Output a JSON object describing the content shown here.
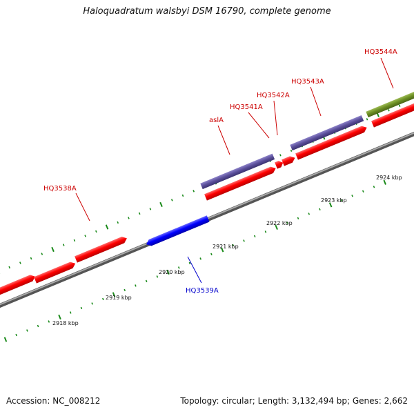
{
  "header": {
    "title": "Haloquadratum walsbyi DSM 16790, complete genome"
  },
  "footer": {
    "accession": "Accession: NC_008212",
    "summary": "Topology: circular; Length: 3,132,494 bp; Genes: 2,662"
  },
  "colors": {
    "forward_gene": "#ff0000",
    "reverse_gene": "#0000ff",
    "cds_forward": "#5a4e9a",
    "cds_other": "#6b8e23",
    "backbone": "#888888",
    "tick": "#1a8a1a",
    "label_forward": "#cc0000",
    "label_reverse": "#0000cc"
  },
  "scale_labels": [
    "2918 kbp",
    "2919 kbp",
    "2920 kbp",
    "2921 kbp",
    "2922 kbp",
    "2923 kbp",
    "2924 kbp"
  ],
  "gene_labels": {
    "hq3538a": "HQ3538A",
    "hq3539a": "HQ3539A",
    "asla": "aslA",
    "hq3541a": "HQ3541A",
    "hq3542a": "HQ3542A",
    "hq3543a": "HQ3543A",
    "hq3544a": "HQ3544A"
  }
}
